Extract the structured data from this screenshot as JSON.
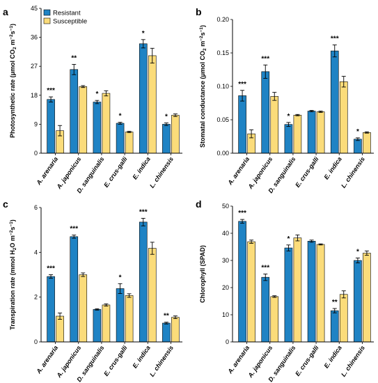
{
  "colors": {
    "resistant": "#1f83c4",
    "susceptible": "#fbdc7a",
    "axis": "#000000",
    "error": "#000000"
  },
  "legend": {
    "items": [
      "Resistant",
      "Susceptible"
    ],
    "position": "top-left"
  },
  "chart_data": [
    {
      "panel": "a",
      "type": "bar",
      "ylabel_main": "Photosynthetic rate (μmol CO",
      "ylabel_sub": "2",
      "ylabel_rest": " m",
      "ylabel_sup1": "−2",
      "ylabel_s": "s",
      "ylabel_sup2": "−1",
      "ylabel_end": ")",
      "ylim": [
        0,
        45
      ],
      "yticks": [
        0,
        9,
        18,
        27,
        36,
        45
      ],
      "yticks_labels": [
        "0",
        "9",
        "18",
        "27",
        "36",
        "45"
      ],
      "categories": [
        "A. arenaria",
        "A. japonicus",
        "D. sanguinalis",
        "E. crus-galli",
        "E. indica",
        "L. chinensis"
      ],
      "series": [
        {
          "name": "Resistant",
          "values": [
            16.7,
            26.0,
            15.9,
            9.3,
            34.0,
            9.0
          ],
          "errors": [
            0.8,
            1.6,
            0.5,
            0.3,
            1.3,
            0.4
          ]
        },
        {
          "name": "Susceptible",
          "values": [
            7.0,
            20.7,
            18.6,
            6.6,
            30.3,
            11.8
          ],
          "errors": [
            1.6,
            0.3,
            0.8,
            0.2,
            2.3,
            0.4
          ]
        }
      ],
      "significance": [
        "***",
        "**",
        "*",
        "*",
        "*",
        "*"
      ]
    },
    {
      "panel": "b",
      "type": "bar",
      "ylabel_main": "Stomatal conductance (μmol CO",
      "ylabel_sub": "2",
      "ylabel_rest": " m",
      "ylabel_sup1": "−2",
      "ylabel_s": "s",
      "ylabel_sup2": "−1",
      "ylabel_end": ")",
      "ylim": [
        0,
        0.2
      ],
      "yticks": [
        0,
        0.05,
        0.1,
        0.15,
        0.2
      ],
      "yticks_labels": [
        "0.00",
        "0.05",
        "0.10",
        "0.15",
        "0.20"
      ],
      "categories": [
        "A. arenaria",
        "A. japonicus",
        "D. sanguinalis",
        "E. crus-galli",
        "E. indica",
        "L. chinensis"
      ],
      "series": [
        {
          "name": "Resistant",
          "values": [
            0.086,
            0.122,
            0.043,
            0.063,
            0.153,
            0.021
          ],
          "errors": [
            0.008,
            0.01,
            0.003,
            0.001,
            0.009,
            0.002
          ]
        },
        {
          "name": "Susceptible",
          "values": [
            0.029,
            0.085,
            0.057,
            0.062,
            0.107,
            0.031
          ],
          "errors": [
            0.006,
            0.006,
            0.001,
            0.001,
            0.008,
            0.001
          ]
        }
      ],
      "significance": [
        "***",
        "***",
        "*",
        "",
        "***",
        "*"
      ]
    },
    {
      "panel": "c",
      "type": "bar",
      "ylabel_main": "Transpiration rate (mmol H",
      "ylabel_sub": "2",
      "ylabel_rest": "O m",
      "ylabel_sup1": "−2",
      "ylabel_s": "s",
      "ylabel_sup2": "−1",
      "ylabel_end": ")",
      "ylim": [
        0,
        6
      ],
      "yticks": [
        0,
        2,
        4,
        6
      ],
      "yticks_labels": [
        "0",
        "2",
        "4",
        "6"
      ],
      "categories": [
        "A. arenaria",
        "A. japonicus",
        "D. sanguinalis",
        "E. crus-galli",
        "E. indica",
        "L. chinensis"
      ],
      "series": [
        {
          "name": "Resistant",
          "values": [
            2.92,
            4.7,
            1.45,
            2.38,
            5.35,
            0.84
          ],
          "errors": [
            0.08,
            0.07,
            0.03,
            0.22,
            0.17,
            0.04
          ]
        },
        {
          "name": "Susceptible",
          "values": [
            1.15,
            3.0,
            1.65,
            2.07,
            4.18,
            1.1
          ],
          "errors": [
            0.14,
            0.08,
            0.05,
            0.08,
            0.27,
            0.06
          ]
        }
      ],
      "significance": [
        "***",
        "***",
        "",
        "*",
        "***",
        "**"
      ]
    },
    {
      "panel": "d",
      "type": "bar",
      "ylabel_main": "Chlorophyll (SPAD)",
      "ylabel_sub": "",
      "ylabel_rest": "",
      "ylabel_sup1": "",
      "ylabel_s": "",
      "ylabel_sup2": "",
      "ylabel_end": "",
      "ylim": [
        0,
        50
      ],
      "yticks": [
        0,
        10,
        20,
        30,
        40,
        50
      ],
      "yticks_labels": [
        "0",
        "10",
        "20",
        "30",
        "40",
        "50"
      ],
      "categories": [
        "A. arenaria",
        "A. japonicus",
        "D. sanguinalis",
        "E. crus-galli",
        "E. indica",
        "L. chinensis"
      ],
      "series": [
        {
          "name": "Resistant",
          "values": [
            44.4,
            23.8,
            34.6,
            37.1,
            11.5,
            30.0
          ],
          "errors": [
            0.7,
            1.2,
            1.1,
            0.4,
            0.8,
            0.9
          ]
        },
        {
          "name": "Susceptible",
          "values": [
            36.9,
            16.7,
            38.3,
            35.9,
            17.5,
            32.7
          ],
          "errors": [
            0.6,
            0.3,
            1.1,
            0.2,
            1.3,
            0.8
          ]
        }
      ],
      "significance": [
        "***",
        "***",
        "*",
        "",
        "**",
        "*"
      ]
    }
  ]
}
